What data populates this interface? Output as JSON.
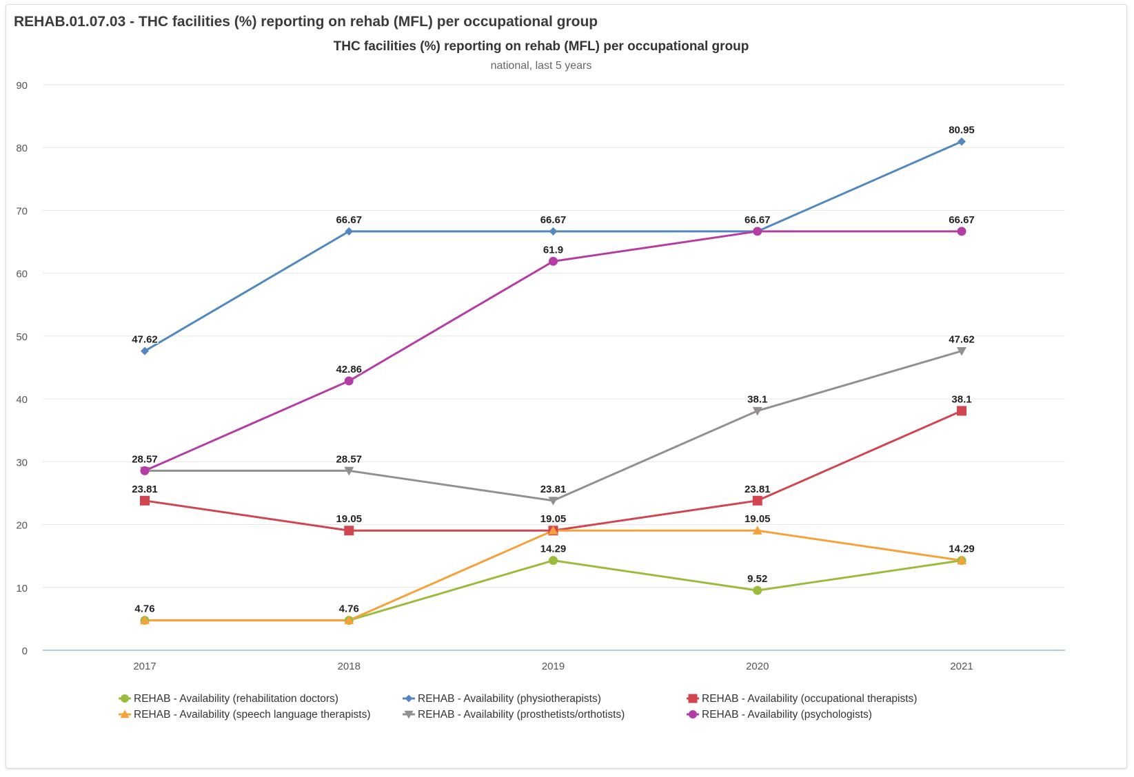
{
  "panel": {
    "title": "REHAB.01.07.03 - THC facilities (%) reporting on rehab (MFL) per occupational group"
  },
  "chart_data": {
    "type": "line",
    "title": "THC facilities (%) reporting on rehab (MFL) per occupational group",
    "subtitle": "national, last 5 years",
    "categories": [
      "2017",
      "2018",
      "2019",
      "2020",
      "2021"
    ],
    "ylim": [
      0,
      90
    ],
    "yticks": [
      0,
      10,
      20,
      30,
      40,
      50,
      60,
      70,
      80,
      90
    ],
    "grid": true,
    "legend_position": "bottom",
    "series": [
      {
        "name": "REHAB - Availability (rehabilitation doctors)",
        "color": "#9bbb3c",
        "marker": "circle",
        "values": [
          4.76,
          4.76,
          14.29,
          9.52,
          14.29
        ],
        "labels": [
          "4.76",
          "4.76",
          "14.29",
          "9.52",
          "14.29"
        ]
      },
      {
        "name": "REHAB - Availability (physiotherapists)",
        "color": "#5287c0",
        "marker": "diamond",
        "values": [
          47.62,
          66.67,
          66.67,
          66.67,
          80.95
        ],
        "labels": [
          "47.62",
          "66.67",
          "66.67",
          "66.67",
          "80.95"
        ]
      },
      {
        "name": "REHAB - Availability (occupational therapists)",
        "color": "#d14550",
        "marker": "square",
        "values": [
          23.81,
          19.05,
          19.05,
          23.81,
          38.1
        ],
        "labels": [
          "23.81",
          "19.05",
          "19.05",
          "23.81",
          "38.1"
        ]
      },
      {
        "name": "REHAB - Availability (speech language therapists)",
        "color": "#f5a23a",
        "marker": "triangle",
        "values": [
          4.76,
          4.76,
          19.05,
          19.05,
          14.29
        ],
        "labels": [
          "",
          "",
          "19.05",
          "19.05",
          ""
        ]
      },
      {
        "name": "REHAB - Availability (prosthetists/orthotists)",
        "color": "#938f90",
        "marker": "triangle-down",
        "values": [
          28.57,
          28.57,
          23.81,
          38.1,
          47.62
        ],
        "labels": [
          "",
          "28.57",
          "23.81",
          "38.1",
          "47.62"
        ]
      },
      {
        "name": "REHAB - Availability (psychologists)",
        "color": "#b43da5",
        "marker": "circle",
        "values": [
          28.57,
          42.86,
          61.9,
          66.67,
          66.67
        ],
        "labels": [
          "28.57",
          "42.86",
          "61.9",
          "",
          "66.67"
        ]
      }
    ]
  }
}
